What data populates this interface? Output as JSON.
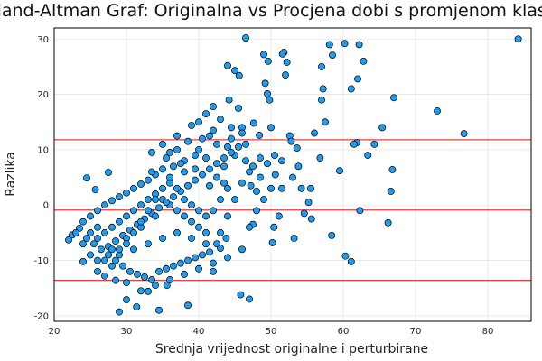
{
  "chart_data": {
    "type": "scatter",
    "title": "Bland-Altman Graf: Originalna vs Procjena dobi s promjenom klase",
    "xlabel": "Srednja vrijednost originalne i perturbirane",
    "ylabel": "Razlika",
    "xlim": [
      20,
      86
    ],
    "ylim": [
      -21,
      32
    ],
    "xticks": [
      20,
      30,
      40,
      50,
      60,
      70,
      80
    ],
    "yticks": [
      -20,
      -10,
      0,
      10,
      20,
      30
    ],
    "grid": true,
    "legend": "none",
    "colors": {
      "points": "#1f9bef",
      "point_stroke": "#000000",
      "lines": "#e8413c",
      "grid": "#e6e6e6",
      "frame": "#000000"
    },
    "reference_lines": [
      {
        "kind": "upper_loa",
        "y": 11.8
      },
      {
        "kind": "mean",
        "y": -0.9
      },
      {
        "kind": "lower_loa",
        "y": -13.6
      }
    ],
    "series": [
      {
        "marker": "circle",
        "points": [
          [
            84.2,
            30.0
          ],
          [
            76.7,
            12.9
          ],
          [
            73.0,
            17.0
          ],
          [
            67.0,
            19.4
          ],
          [
            66.8,
            6.4
          ],
          [
            66.2,
            -3.2
          ],
          [
            66.6,
            2.5
          ],
          [
            65.4,
            14.0
          ],
          [
            64.3,
            11.0
          ],
          [
            63.4,
            9.0
          ],
          [
            62.8,
            26.0
          ],
          [
            62.0,
            22.8
          ],
          [
            62.3,
            -1.0
          ],
          [
            62.2,
            29.0
          ],
          [
            61.9,
            11.3
          ],
          [
            61.5,
            11.0
          ],
          [
            61.1,
            21.0
          ],
          [
            60.2,
            29.2
          ],
          [
            60.3,
            -9.2
          ],
          [
            61.1,
            -10.2
          ],
          [
            59.5,
            6.2
          ],
          [
            58.1,
            29.0
          ],
          [
            58.5,
            27.1
          ],
          [
            57.5,
            15.0
          ],
          [
            57.0,
            19.0
          ],
          [
            57.2,
            21.0
          ],
          [
            57.0,
            25.0
          ],
          [
            56.8,
            8.5
          ],
          [
            56.0,
            13.0
          ],
          [
            55.5,
            3.0
          ],
          [
            55.2,
            0.5
          ],
          [
            54.6,
            -1.5
          ],
          [
            54.2,
            3.0
          ],
          [
            53.8,
            7.0
          ],
          [
            53.0,
            5.0
          ],
          [
            52.6,
            12.5
          ],
          [
            52.0,
            23.5
          ],
          [
            52.2,
            25.8
          ],
          [
            51.8,
            27.6
          ],
          [
            51.6,
            27.3
          ],
          [
            51.5,
            3.0
          ],
          [
            51.1,
            -2.0
          ],
          [
            50.6,
            5.5
          ],
          [
            50.2,
            -6.8
          ],
          [
            49.5,
            20.1
          ],
          [
            49.8,
            19.0
          ],
          [
            49.6,
            26.0
          ],
          [
            49.2,
            22.0
          ],
          [
            49.0,
            27.2
          ],
          [
            48.5,
            8.5
          ],
          [
            47.5,
            -3.5
          ],
          [
            47.2,
            3.5
          ],
          [
            47.0,
            -17.0
          ],
          [
            46.5,
            30.2
          ],
          [
            45.8,
            -16.2
          ],
          [
            45.6,
            23.4
          ],
          [
            45.0,
            24.3
          ],
          [
            44.0,
            25.2
          ],
          [
            44.2,
            19.0
          ],
          [
            43.8,
            -6.0
          ],
          [
            43.0,
            -7.8
          ],
          [
            42.5,
            5.0
          ],
          [
            42.0,
            -12.0
          ],
          [
            38.5,
            -18.1
          ],
          [
            34.5,
            -19.0
          ],
          [
            31.4,
            -18.4
          ],
          [
            29.0,
            -19.3
          ],
          [
            33.0,
            -15.6
          ],
          [
            30.0,
            -17.1
          ],
          [
            35.6,
            -14.5
          ],
          [
            28.5,
            -13.6
          ],
          [
            27.0,
            -12.8
          ],
          [
            24.0,
            -10.2
          ],
          [
            22.5,
            -5.4
          ],
          [
            22.0,
            -6.3
          ],
          [
            24.5,
            4.9
          ],
          [
            25.7,
            2.8
          ],
          [
            27.5,
            5.9
          ],
          [
            45.5,
            17.5
          ],
          [
            46.0,
            14.0
          ],
          [
            47.6,
            14.8
          ],
          [
            48.4,
            12.6
          ],
          [
            50.0,
            14.0
          ],
          [
            52.8,
            11.5
          ],
          [
            53.6,
            10.3
          ],
          [
            48.0,
            2.5
          ],
          [
            50.4,
            -4.0
          ],
          [
            53.2,
            -6.0
          ],
          [
            58.4,
            -5.5
          ],
          [
            55.6,
            -2.5
          ],
          [
            41.0,
            16.5
          ],
          [
            42.0,
            17.8
          ],
          [
            40.0,
            15.0
          ],
          [
            39.0,
            14.4
          ],
          [
            43.0,
            15.5
          ],
          [
            44.5,
            14.0
          ],
          [
            41.5,
            12.5
          ],
          [
            40.5,
            12.0
          ],
          [
            38.5,
            11.5
          ],
          [
            37.0,
            10.0
          ],
          [
            36.0,
            9.5
          ],
          [
            42.5,
            11.0
          ],
          [
            44.0,
            10.5
          ],
          [
            45.0,
            9.0
          ],
          [
            46.5,
            8.0
          ],
          [
            47.5,
            7.0
          ],
          [
            43.5,
            7.0
          ],
          [
            41.0,
            8.5
          ],
          [
            39.5,
            9.0
          ],
          [
            38.0,
            8.0
          ],
          [
            36.5,
            7.0
          ],
          [
            35.0,
            6.5
          ],
          [
            34.0,
            5.5
          ],
          [
            33.0,
            4.5
          ],
          [
            32.0,
            3.8
          ],
          [
            31.0,
            3.0
          ],
          [
            30.0,
            2.2
          ],
          [
            29.0,
            1.5
          ],
          [
            28.0,
            0.8
          ],
          [
            27.0,
            0.0
          ],
          [
            26.0,
            -1.0
          ],
          [
            25.0,
            -2.0
          ],
          [
            24.0,
            -3.0
          ],
          [
            23.5,
            -4.2
          ],
          [
            23.0,
            -5.0
          ],
          [
            24.5,
            -6.0
          ],
          [
            25.5,
            -7.0
          ],
          [
            26.5,
            -8.0
          ],
          [
            27.5,
            -9.0
          ],
          [
            28.5,
            -10.0
          ],
          [
            29.5,
            -11.0
          ],
          [
            30.5,
            -12.0
          ],
          [
            31.5,
            -12.5
          ],
          [
            32.5,
            -13.0
          ],
          [
            33.5,
            -13.5
          ],
          [
            34.5,
            -12.0
          ],
          [
            35.5,
            -11.5
          ],
          [
            36.5,
            -11.0
          ],
          [
            37.5,
            -10.5
          ],
          [
            38.5,
            -10.0
          ],
          [
            39.5,
            -9.5
          ],
          [
            40.5,
            -9.0
          ],
          [
            41.5,
            -8.5
          ],
          [
            42.5,
            -7.0
          ],
          [
            41.0,
            -5.0
          ],
          [
            40.0,
            -4.0
          ],
          [
            39.0,
            -3.0
          ],
          [
            38.0,
            -2.0
          ],
          [
            37.0,
            -1.0
          ],
          [
            36.0,
            0.0
          ],
          [
            35.0,
            1.0
          ],
          [
            34.0,
            2.0
          ],
          [
            33.0,
            1.0
          ],
          [
            32.0,
            0.0
          ],
          [
            31.0,
            -1.0
          ],
          [
            30.0,
            -2.0
          ],
          [
            29.0,
            -3.0
          ],
          [
            28.0,
            -4.0
          ],
          [
            27.0,
            -5.0
          ],
          [
            26.0,
            -6.0
          ],
          [
            27.5,
            -7.5
          ],
          [
            28.5,
            -6.5
          ],
          [
            29.5,
            -5.5
          ],
          [
            30.5,
            -4.5
          ],
          [
            31.5,
            -3.5
          ],
          [
            32.5,
            -2.5
          ],
          [
            33.5,
            -1.5
          ],
          [
            34.5,
            -0.5
          ],
          [
            35.5,
            0.5
          ],
          [
            36.5,
            1.5
          ],
          [
            37.5,
            2.5
          ],
          [
            38.5,
            3.5
          ],
          [
            39.5,
            4.5
          ],
          [
            40.5,
            5.5
          ],
          [
            41.5,
            6.5
          ],
          [
            42.5,
            7.5
          ],
          [
            43.5,
            8.5
          ],
          [
            44.5,
            9.5
          ],
          [
            45.5,
            10.5
          ],
          [
            46.5,
            11.0
          ],
          [
            40.0,
            10.0
          ],
          [
            38.0,
            6.0
          ],
          [
            36.0,
            4.0
          ],
          [
            34.0,
            -2.0
          ],
          [
            32.0,
            -4.0
          ],
          [
            30.0,
            -6.0
          ],
          [
            28.0,
            -8.0
          ],
          [
            26.0,
            -10.0
          ],
          [
            29.0,
            -9.0
          ],
          [
            31.0,
            -8.0
          ],
          [
            33.0,
            -7.0
          ],
          [
            35.0,
            -6.0
          ],
          [
            37.0,
            -5.0
          ],
          [
            39.0,
            -6.0
          ],
          [
            41.0,
            -7.0
          ],
          [
            43.0,
            -5.0
          ],
          [
            44.0,
            -2.0
          ],
          [
            45.0,
            1.0
          ],
          [
            46.0,
            4.0
          ],
          [
            47.0,
            6.0
          ],
          [
            48.5,
            5.0
          ],
          [
            49.5,
            7.5
          ],
          [
            50.5,
            9.0
          ],
          [
            51.5,
            8.0
          ],
          [
            44.0,
            3.0
          ],
          [
            43.0,
            1.0
          ],
          [
            42.0,
            -1.0
          ],
          [
            41.0,
            -2.0
          ],
          [
            40.0,
            -1.0
          ],
          [
            39.0,
            0.0
          ],
          [
            38.0,
            1.0
          ],
          [
            37.0,
            3.0
          ],
          [
            36.0,
            5.0
          ],
          [
            35.0,
            3.0
          ],
          [
            34.0,
            1.0
          ],
          [
            33.0,
            -1.0
          ],
          [
            32.0,
            -3.0
          ],
          [
            31.0,
            -5.0
          ],
          [
            30.0,
            -7.0
          ],
          [
            29.0,
            -8.0
          ],
          [
            28.0,
            -11.0
          ],
          [
            27.0,
            -10.0
          ],
          [
            26.0,
            -4.0
          ],
          [
            25.0,
            -5.0
          ],
          [
            24.0,
            -7.0
          ],
          [
            25.0,
            -9.0
          ],
          [
            26.0,
            -12.0
          ],
          [
            30.0,
            -14.0
          ],
          [
            32.0,
            -15.5
          ],
          [
            34.0,
            -14.5
          ],
          [
            36.0,
            -13.5
          ],
          [
            38.0,
            -12.5
          ],
          [
            40.0,
            -11.5
          ],
          [
            42.0,
            -10.5
          ],
          [
            44.0,
            -9.5
          ],
          [
            46.0,
            -8.0
          ],
          [
            47.0,
            -4.0
          ],
          [
            48.0,
            -1.0
          ],
          [
            49.0,
            1.0
          ],
          [
            50.0,
            3.0
          ],
          [
            33.5,
            6.0
          ],
          [
            35.5,
            8.5
          ],
          [
            37.5,
            7.5
          ],
          [
            39.5,
            6.5
          ],
          [
            41.5,
            3.5
          ],
          [
            43.5,
            4.0
          ],
          [
            42.0,
            13.5
          ],
          [
            44.5,
            12.0
          ],
          [
            46.0,
            13.0
          ],
          [
            37.0,
            12.5
          ],
          [
            35.0,
            11.0
          ],
          [
            33.5,
            9.5
          ]
        ]
      }
    ]
  }
}
